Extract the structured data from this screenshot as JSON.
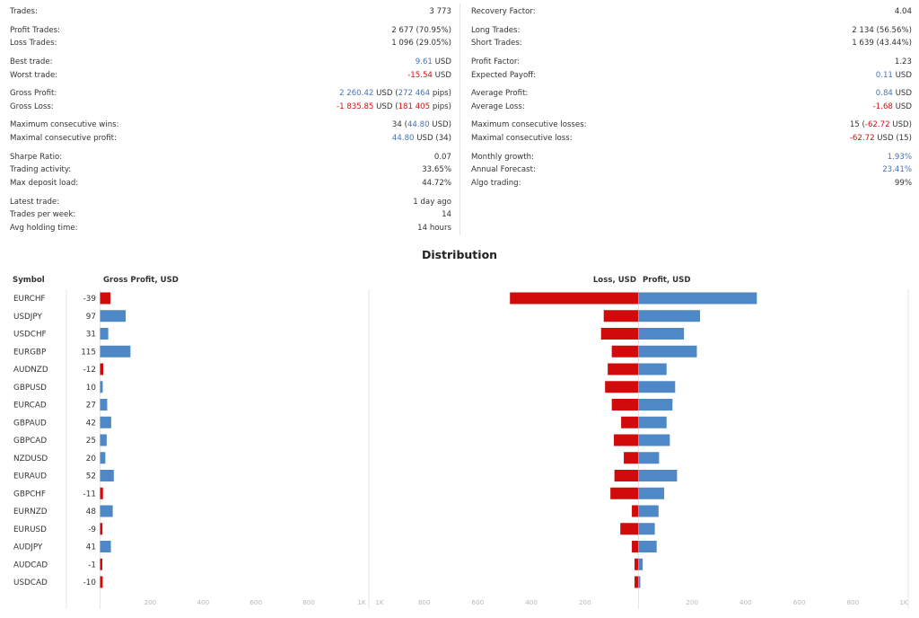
{
  "stats_left": [
    {
      "label": "Trades:",
      "value": [
        {
          "t": "3 773"
        }
      ]
    },
    {
      "label": "Profit Trades:",
      "value": [
        {
          "t": "2 677 (70.95%)"
        }
      ]
    },
    {
      "label": "Loss Trades:",
      "value": [
        {
          "t": "1 096 (29.05%)"
        }
      ]
    },
    {
      "label": "Best trade:",
      "value": [
        {
          "t": "9.61",
          "c": "blue"
        },
        {
          "t": " USD"
        }
      ]
    },
    {
      "label": "Worst trade:",
      "value": [
        {
          "t": "-15.54",
          "c": "red"
        },
        {
          "t": " USD"
        }
      ]
    },
    {
      "label": "Gross Profit:",
      "value": [
        {
          "t": "2 260.42",
          "c": "blue"
        },
        {
          "t": " USD ("
        },
        {
          "t": "272 464",
          "c": "blue"
        },
        {
          "t": " pips)"
        }
      ]
    },
    {
      "label": "Gross Loss:",
      "value": [
        {
          "t": "-1 835.85",
          "c": "red"
        },
        {
          "t": " USD ("
        },
        {
          "t": "181 405",
          "c": "red"
        },
        {
          "t": " pips)"
        }
      ]
    },
    {
      "label": "Maximum consecutive wins:",
      "value": [
        {
          "t": "34 ("
        },
        {
          "t": "44.80",
          "c": "blue"
        },
        {
          "t": " USD)"
        }
      ]
    },
    {
      "label": "Maximal consecutive profit:",
      "value": [
        {
          "t": "44.80",
          "c": "blue"
        },
        {
          "t": " USD (34)"
        }
      ]
    },
    {
      "label": "Sharpe Ratio:",
      "value": [
        {
          "t": "0.07"
        }
      ]
    },
    {
      "label": "Trading activity:",
      "value": [
        {
          "t": "33.65%"
        }
      ]
    },
    {
      "label": "Max deposit load:",
      "value": [
        {
          "t": "44.72%"
        }
      ]
    },
    {
      "label": "Latest trade:",
      "value": [
        {
          "t": "1 day ago"
        }
      ]
    },
    {
      "label": "Trades per week:",
      "value": [
        {
          "t": "14"
        }
      ]
    },
    {
      "label": "Avg holding time:",
      "value": [
        {
          "t": "14 hours"
        }
      ]
    }
  ],
  "stats_right": [
    {
      "label": "Recovery Factor:",
      "value": [
        {
          "t": "4.04"
        }
      ]
    },
    {
      "label": "Long Trades:",
      "value": [
        {
          "t": "2 134 (56.56%)"
        }
      ]
    },
    {
      "label": "Short Trades:",
      "value": [
        {
          "t": "1 639 (43.44%)"
        }
      ]
    },
    {
      "label": "Profit Factor:",
      "value": [
        {
          "t": "1.23"
        }
      ]
    },
    {
      "label": "Expected Payoff:",
      "value": [
        {
          "t": "0.11",
          "c": "blue"
        },
        {
          "t": " USD"
        }
      ]
    },
    {
      "label": "Average Profit:",
      "value": [
        {
          "t": "0.84",
          "c": "blue"
        },
        {
          "t": " USD"
        }
      ]
    },
    {
      "label": "Average Loss:",
      "value": [
        {
          "t": "-1.68",
          "c": "red"
        },
        {
          "t": " USD"
        }
      ]
    },
    {
      "label": "Maximum consecutive losses:",
      "value": [
        {
          "t": "15 ("
        },
        {
          "t": "-62.72",
          "c": "red"
        },
        {
          "t": " USD)"
        }
      ]
    },
    {
      "label": "Maximal consecutive loss:",
      "value": [
        {
          "t": "-62.72",
          "c": "red"
        },
        {
          "t": " USD (15)"
        }
      ]
    },
    {
      "label": "Monthly growth:",
      "value": [
        {
          "t": "1.93%",
          "c": "blue"
        }
      ]
    },
    {
      "label": "Annual Forecast:",
      "value": [
        {
          "t": "23.41%",
          "c": "blue"
        }
      ]
    },
    {
      "label": "Algo trading:",
      "value": [
        {
          "t": "99%"
        }
      ]
    }
  ],
  "distribution_title": "Distribution",
  "headers": {
    "symbol": "Symbol",
    "gross_profit": "Gross Profit, USD",
    "loss": "Loss, USD",
    "profit": "Profit, USD"
  },
  "colors": {
    "profit": "#4f88c6",
    "loss": "#d10b0b",
    "grid": "#e6e6e6",
    "axis_text": "#b8b8b8"
  },
  "chart_data": [
    {
      "type": "bar",
      "orientation": "horizontal",
      "title": "Gross Profit, USD",
      "categories": [
        "EURCHF",
        "USDJPY",
        "USDCHF",
        "EURGBP",
        "AUDNZD",
        "GBPUSD",
        "EURCAD",
        "GBPAUD",
        "GBPCAD",
        "NZDUSD",
        "EURAUD",
        "GBPCHF",
        "EURNZD",
        "EURUSD",
        "AUDJPY",
        "AUDCAD",
        "USDCAD"
      ],
      "values": [
        -39,
        97,
        31,
        115,
        -12,
        10,
        27,
        42,
        25,
        20,
        52,
        -11,
        48,
        -9,
        41,
        -1,
        -10
      ],
      "xlim": [
        0,
        1000
      ],
      "xticks": [
        "200",
        "400",
        "600",
        "800",
        "1K"
      ]
    },
    {
      "type": "bar",
      "orientation": "horizontal",
      "title": "Loss, USD / Profit, USD",
      "categories": [
        "EURCHF",
        "USDJPY",
        "USDCHF",
        "EURGBP",
        "AUDNZD",
        "GBPUSD",
        "EURCAD",
        "GBPAUD",
        "GBPCAD",
        "NZDUSD",
        "EURAUD",
        "GBPCHF",
        "EURNZD",
        "EURUSD",
        "AUDJPY",
        "AUDCAD",
        "USDCAD"
      ],
      "series": [
        {
          "name": "Loss, USD",
          "values": [
            480,
            130,
            140,
            100,
            115,
            125,
            100,
            65,
            92,
            55,
            90,
            105,
            25,
            68,
            25,
            15,
            15
          ]
        },
        {
          "name": "Profit, USD",
          "values": [
            440,
            228,
            168,
            216,
            103,
            135,
            125,
            103,
            115,
            75,
            142,
            94,
            73,
            59,
            66,
            14,
            5
          ]
        }
      ],
      "xlim": [
        -1000,
        1000
      ],
      "xticks_left": [
        "1K",
        "800",
        "600",
        "400",
        "200"
      ],
      "xticks_right": [
        "200",
        "400",
        "600",
        "800",
        "1K"
      ]
    }
  ]
}
